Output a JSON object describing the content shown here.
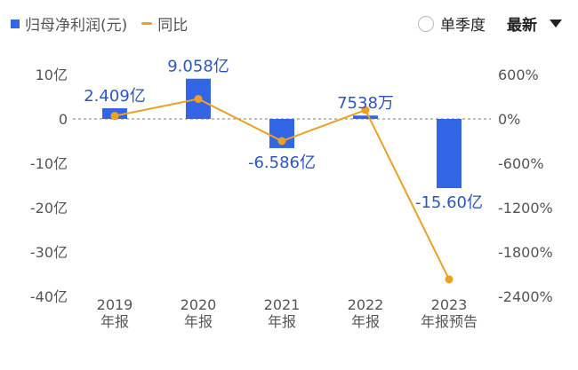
{
  "legend": {
    "bar_label": "归母净利润(元)",
    "line_label": "同比"
  },
  "controls": {
    "radio_label": "单季度",
    "dropdown_label": "最新"
  },
  "colors": {
    "bar": "#3366e6",
    "line": "#f0a020",
    "zero_line": "#999999",
    "tick_text": "#555555",
    "label_text": "#2a56c6"
  },
  "chart_data": {
    "type": "bar",
    "categories": [
      [
        "2019",
        "年报"
      ],
      [
        "2020",
        "年报"
      ],
      [
        "2021",
        "年报"
      ],
      [
        "2022",
        "年报"
      ],
      [
        "2023",
        "年报预告"
      ]
    ],
    "series": [
      {
        "name": "归母净利润(元)",
        "type": "bar",
        "axis": "left",
        "values": [
          2.409,
          9.058,
          -6.586,
          0.7538,
          -15.6
        ],
        "unit": "亿"
      },
      {
        "name": "同比",
        "type": "line",
        "axis": "right",
        "values": [
          40,
          270,
          -300,
          120,
          -2170
        ],
        "unit": "%"
      }
    ],
    "data_labels": [
      "2.409亿",
      "9.058亿",
      "-6.586亿",
      "7538万",
      "-15.60亿"
    ],
    "left_axis": {
      "ticks": [
        10,
        0,
        -10,
        -20,
        -30,
        -40
      ],
      "tick_labels": [
        "10亿",
        "0",
        "-10亿",
        "-20亿",
        "-30亿",
        "-40亿"
      ],
      "ylim": [
        -40,
        10
      ]
    },
    "right_axis": {
      "ticks": [
        600,
        0,
        -600,
        -1200,
        -1800,
        -2400
      ],
      "tick_labels": [
        "600%",
        "0%",
        "-600%",
        "-1200%",
        "-1800%",
        "-2400%"
      ],
      "ylim": [
        -2400,
        600
      ]
    },
    "grid": false,
    "zero_line": "dashed"
  }
}
